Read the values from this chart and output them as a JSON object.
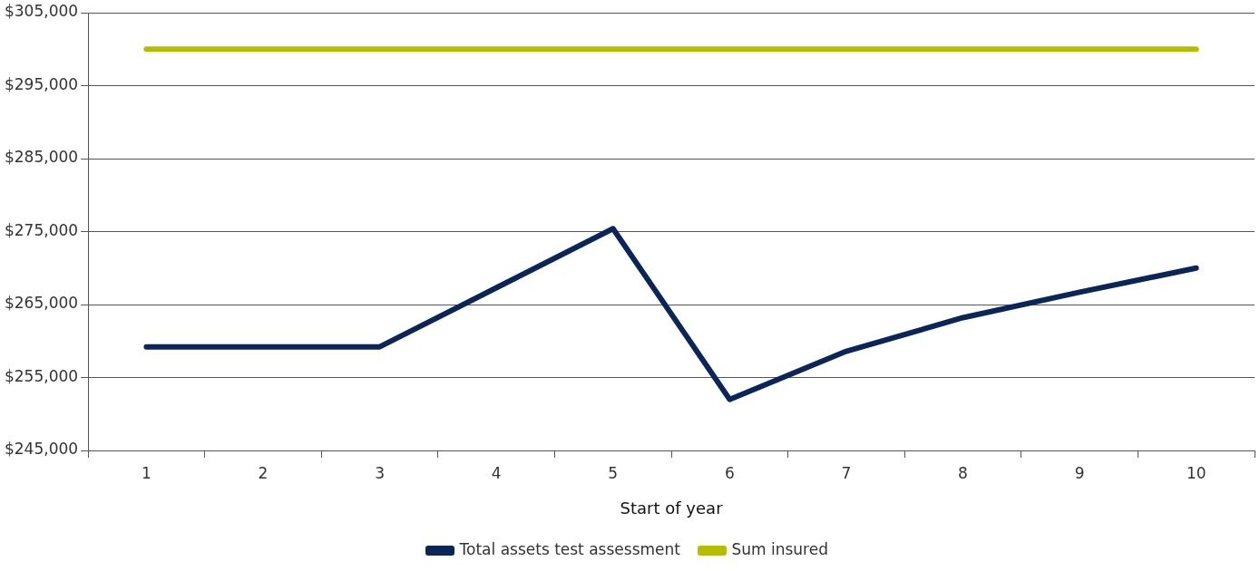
{
  "chart_data": {
    "type": "line",
    "xlabel": "Start of year",
    "categories": [
      "1",
      "2",
      "3",
      "4",
      "5",
      "6",
      "7",
      "8",
      "9",
      "10"
    ],
    "series": [
      {
        "name": "Total assets test assessment",
        "color": "#0b2559",
        "values": [
          259200,
          259200,
          259200,
          267300,
          275400,
          252000,
          258600,
          263200,
          266700,
          270000
        ]
      },
      {
        "name": "Sum insured",
        "color": "#b5bd00",
        "values": [
          300000,
          300000,
          300000,
          300000,
          300000,
          300000,
          300000,
          300000,
          300000,
          300000
        ]
      }
    ],
    "ylim": [
      245000,
      305000
    ],
    "yticks": [
      {
        "value": 245000,
        "label": "$245,000"
      },
      {
        "value": 255000,
        "label": "$255,000"
      },
      {
        "value": 265000,
        "label": "$265,000"
      },
      {
        "value": 275000,
        "label": "$275,000"
      },
      {
        "value": 285000,
        "label": "$285,000"
      },
      {
        "value": 295000,
        "label": "$295,000"
      },
      {
        "value": 305000,
        "label": "$305,000"
      }
    ],
    "grid": "y",
    "legend": "bottom",
    "marker": "none",
    "line_style": "solid"
  }
}
